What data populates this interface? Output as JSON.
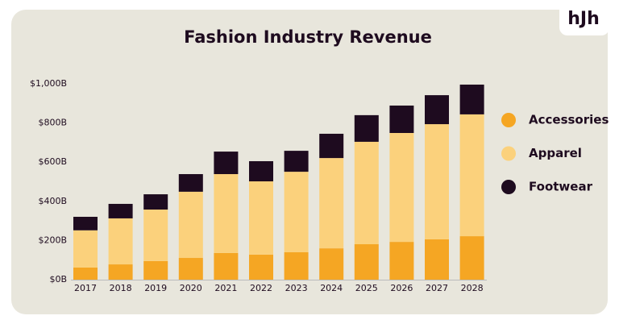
{
  "brand": "hJh",
  "chart_data": {
    "type": "stacked-bar",
    "title": "Fashion Industry Revenue",
    "categories": [
      "2017",
      "2018",
      "2019",
      "2020",
      "2021",
      "2022",
      "2023",
      "2024",
      "2025",
      "2026",
      "2027",
      "2028"
    ],
    "series": [
      {
        "name": "Accessories",
        "color": "#f5a623",
        "values": [
          62,
          78,
          95,
          111,
          136,
          128,
          140,
          160,
          181,
          193,
          206,
          222
        ]
      },
      {
        "name": "Apparel",
        "color": "#fbd17c",
        "values": [
          190,
          235,
          263,
          338,
          403,
          374,
          411,
          461,
          523,
          556,
          588,
          622
        ]
      },
      {
        "name": "Footwear",
        "color": "#1e0b1f",
        "values": [
          69,
          74,
          78,
          90,
          115,
          103,
          107,
          124,
          136,
          140,
          148,
          152
        ]
      }
    ],
    "ylim": [
      0,
      1000
    ],
    "yticks": [
      {
        "value": 0,
        "label": "$0B"
      },
      {
        "value": 200,
        "label": "$200B"
      },
      {
        "value": 400,
        "label": "$400B"
      },
      {
        "value": 600,
        "label": "$600B"
      },
      {
        "value": 800,
        "label": "$800B"
      },
      {
        "value": 1000,
        "label": "$1,000B"
      }
    ],
    "grid": false,
    "legend": "right"
  }
}
